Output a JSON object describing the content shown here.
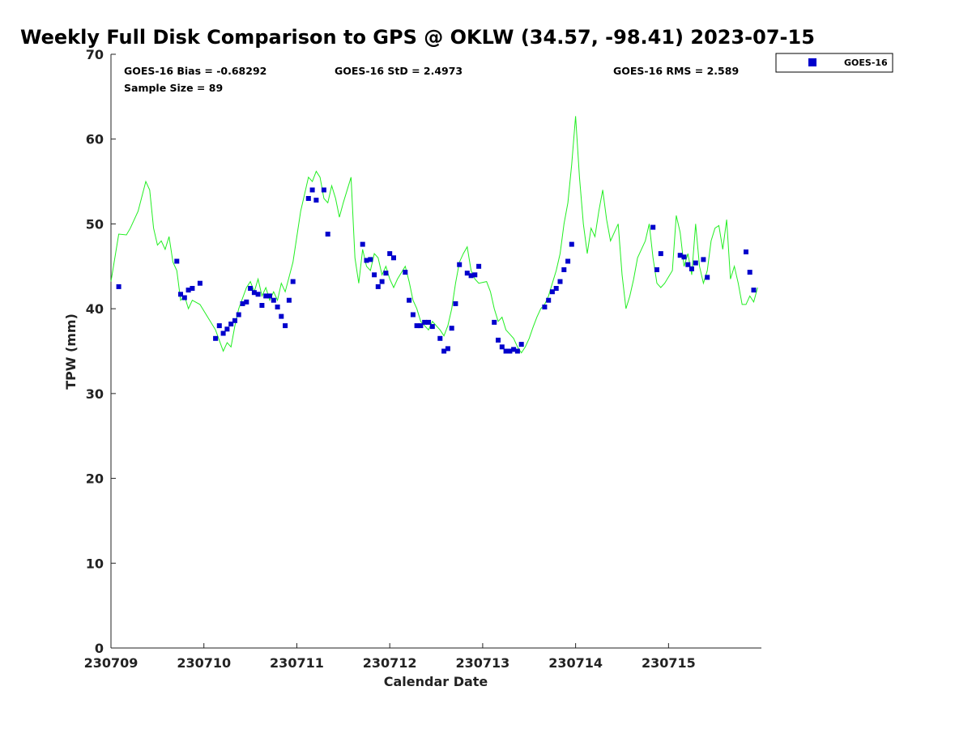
{
  "chart_data": {
    "type": "scatter",
    "title": "Weekly Full Disk Comparison to GPS @ OKLW (34.57, -98.41) 2023-07-15",
    "xlabel": "Calendar Date",
    "ylabel": "TPW (mm)",
    "xlim": [
      "2023-07-09T00:00",
      "2023-07-15T23:59"
    ],
    "ylim": [
      0,
      70
    ],
    "yticks": [
      0,
      10,
      20,
      30,
      40,
      50,
      60,
      70
    ],
    "xticks": [
      {
        "date": "2023-07-09T00:00",
        "label": "230709"
      },
      {
        "date": "2023-07-10T00:00",
        "label": "230710"
      },
      {
        "date": "2023-07-11T00:00",
        "label": "230711"
      },
      {
        "date": "2023-07-12T00:00",
        "label": "230712"
      },
      {
        "date": "2023-07-13T00:00",
        "label": "230713"
      },
      {
        "date": "2023-07-14T00:00",
        "label": "230714"
      },
      {
        "date": "2023-07-15T00:00",
        "label": "230715"
      }
    ],
    "grid": false,
    "legend_position": "outside-top-right",
    "stats": {
      "bias": "GOES-16 Bias = -0.68292",
      "std": "GOES-16 StD = 2.4973",
      "rms": "GOES-16 RMS = 2.589",
      "sample": "Sample Size = 89"
    },
    "series": [
      {
        "name": "GOES-16",
        "kind": "scatter",
        "marker": "square",
        "color": "#0000cc",
        "points": [
          [
            "2023-07-09T02:00",
            42.6
          ],
          [
            "2023-07-09T17:00",
            45.6
          ],
          [
            "2023-07-09T18:00",
            41.7
          ],
          [
            "2023-07-09T19:00",
            41.3
          ],
          [
            "2023-07-09T20:00",
            42.2
          ],
          [
            "2023-07-09T21:00",
            42.4
          ],
          [
            "2023-07-09T23:00",
            43.0
          ],
          [
            "2023-07-10T03:00",
            36.5
          ],
          [
            "2023-07-10T04:00",
            38.0
          ],
          [
            "2023-07-10T05:00",
            37.1
          ],
          [
            "2023-07-10T06:00",
            37.6
          ],
          [
            "2023-07-10T07:00",
            38.2
          ],
          [
            "2023-07-10T08:00",
            38.6
          ],
          [
            "2023-07-10T09:00",
            39.3
          ],
          [
            "2023-07-10T10:00",
            40.6
          ],
          [
            "2023-07-10T11:00",
            40.8
          ],
          [
            "2023-07-10T12:00",
            42.4
          ],
          [
            "2023-07-10T13:00",
            41.9
          ],
          [
            "2023-07-10T14:00",
            41.7
          ],
          [
            "2023-07-10T15:00",
            40.4
          ],
          [
            "2023-07-10T16:00",
            41.5
          ],
          [
            "2023-07-10T17:00",
            41.5
          ],
          [
            "2023-07-10T18:00",
            41.0
          ],
          [
            "2023-07-10T19:00",
            40.2
          ],
          [
            "2023-07-10T20:00",
            39.1
          ],
          [
            "2023-07-10T21:00",
            38.0
          ],
          [
            "2023-07-10T22:00",
            41.0
          ],
          [
            "2023-07-10T23:00",
            43.2
          ],
          [
            "2023-07-11T03:00",
            53.0
          ],
          [
            "2023-07-11T04:00",
            54.0
          ],
          [
            "2023-07-11T05:00",
            52.8
          ],
          [
            "2023-07-11T07:00",
            54.0
          ],
          [
            "2023-07-11T08:00",
            48.8
          ],
          [
            "2023-07-11T17:00",
            47.6
          ],
          [
            "2023-07-11T18:00",
            45.7
          ],
          [
            "2023-07-11T19:00",
            45.8
          ],
          [
            "2023-07-11T20:00",
            44.0
          ],
          [
            "2023-07-11T21:00",
            42.6
          ],
          [
            "2023-07-11T22:00",
            43.2
          ],
          [
            "2023-07-11T23:00",
            44.2
          ],
          [
            "2023-07-12T00:00",
            46.5
          ],
          [
            "2023-07-12T01:00",
            46.0
          ],
          [
            "2023-07-12T04:00",
            44.3
          ],
          [
            "2023-07-12T05:00",
            41.0
          ],
          [
            "2023-07-12T06:00",
            39.3
          ],
          [
            "2023-07-12T07:00",
            38.0
          ],
          [
            "2023-07-12T08:00",
            38.0
          ],
          [
            "2023-07-12T09:00",
            38.4
          ],
          [
            "2023-07-12T10:00",
            38.4
          ],
          [
            "2023-07-12T11:00",
            37.9
          ],
          [
            "2023-07-12T13:00",
            36.5
          ],
          [
            "2023-07-12T14:00",
            35.0
          ],
          [
            "2023-07-12T15:00",
            35.3
          ],
          [
            "2023-07-12T16:00",
            37.7
          ],
          [
            "2023-07-12T17:00",
            40.6
          ],
          [
            "2023-07-12T18:00",
            45.2
          ],
          [
            "2023-07-12T20:00",
            44.2
          ],
          [
            "2023-07-12T21:00",
            43.9
          ],
          [
            "2023-07-12T22:00",
            44.0
          ],
          [
            "2023-07-12T23:00",
            45.0
          ],
          [
            "2023-07-13T03:00",
            38.4
          ],
          [
            "2023-07-13T04:00",
            36.3
          ],
          [
            "2023-07-13T05:00",
            35.5
          ],
          [
            "2023-07-13T06:00",
            35.0
          ],
          [
            "2023-07-13T07:00",
            35.0
          ],
          [
            "2023-07-13T08:00",
            35.2
          ],
          [
            "2023-07-13T09:00",
            35.0
          ],
          [
            "2023-07-13T10:00",
            35.8
          ],
          [
            "2023-07-13T16:00",
            40.2
          ],
          [
            "2023-07-13T17:00",
            41.0
          ],
          [
            "2023-07-13T18:00",
            42.0
          ],
          [
            "2023-07-13T19:00",
            42.4
          ],
          [
            "2023-07-13T20:00",
            43.2
          ],
          [
            "2023-07-13T21:00",
            44.6
          ],
          [
            "2023-07-13T22:00",
            45.6
          ],
          [
            "2023-07-13T23:00",
            47.6
          ],
          [
            "2023-07-14T20:00",
            49.6
          ],
          [
            "2023-07-14T21:00",
            44.6
          ],
          [
            "2023-07-14T22:00",
            46.5
          ],
          [
            "2023-07-15T03:00",
            46.3
          ],
          [
            "2023-07-15T04:00",
            46.1
          ],
          [
            "2023-07-15T05:00",
            45.2
          ],
          [
            "2023-07-15T06:00",
            44.7
          ],
          [
            "2023-07-15T07:00",
            45.4
          ],
          [
            "2023-07-15T09:00",
            45.8
          ],
          [
            "2023-07-15T10:00",
            43.7
          ],
          [
            "2023-07-15T20:00",
            46.7
          ],
          [
            "2023-07-15T21:00",
            44.3
          ],
          [
            "2023-07-15T22:00",
            42.2
          ]
        ]
      },
      {
        "name": "",
        "kind": "line",
        "color": "#22ee22",
        "points": [
          [
            "2023-07-09T00:00",
            43.2
          ],
          [
            "2023-07-09T02:00",
            48.8
          ],
          [
            "2023-07-09T04:00",
            48.7
          ],
          [
            "2023-07-09T05:00",
            49.5
          ],
          [
            "2023-07-09T06:00",
            50.5
          ],
          [
            "2023-07-09T07:00",
            51.5
          ],
          [
            "2023-07-09T09:00",
            55.0
          ],
          [
            "2023-07-09T10:00",
            54.0
          ],
          [
            "2023-07-09T11:00",
            49.5
          ],
          [
            "2023-07-09T12:00",
            47.5
          ],
          [
            "2023-07-09T13:00",
            48.0
          ],
          [
            "2023-07-09T14:00",
            47.0
          ],
          [
            "2023-07-09T15:00",
            48.5
          ],
          [
            "2023-07-09T16:00",
            45.5
          ],
          [
            "2023-07-09T17:00",
            44.5
          ],
          [
            "2023-07-09T18:00",
            41.0
          ],
          [
            "2023-07-09T19:00",
            41.5
          ],
          [
            "2023-07-09T20:00",
            40.0
          ],
          [
            "2023-07-09T21:00",
            41.0
          ],
          [
            "2023-07-09T23:00",
            40.5
          ],
          [
            "2023-07-10T01:00",
            39.0
          ],
          [
            "2023-07-10T03:00",
            37.5
          ],
          [
            "2023-07-10T05:00",
            35.0
          ],
          [
            "2023-07-10T06:00",
            36.0
          ],
          [
            "2023-07-10T07:00",
            35.5
          ],
          [
            "2023-07-10T08:00",
            38.0
          ],
          [
            "2023-07-10T09:00",
            40.0
          ],
          [
            "2023-07-10T11:00",
            42.5
          ],
          [
            "2023-07-10T12:00",
            43.2
          ],
          [
            "2023-07-10T13:00",
            42.0
          ],
          [
            "2023-07-10T14:00",
            43.5
          ],
          [
            "2023-07-10T15:00",
            41.5
          ],
          [
            "2023-07-10T16:00",
            42.5
          ],
          [
            "2023-07-10T17:00",
            41.0
          ],
          [
            "2023-07-10T18:00",
            42.0
          ],
          [
            "2023-07-10T19:00",
            41.0
          ],
          [
            "2023-07-10T20:00",
            43.0
          ],
          [
            "2023-07-10T21:00",
            42.0
          ],
          [
            "2023-07-10T23:00",
            45.5
          ],
          [
            "2023-07-11T01:00",
            51.5
          ],
          [
            "2023-07-11T02:00",
            53.5
          ],
          [
            "2023-07-11T03:00",
            55.5
          ],
          [
            "2023-07-11T04:00",
            55.0
          ],
          [
            "2023-07-11T05:00",
            56.2
          ],
          [
            "2023-07-11T06:00",
            55.5
          ],
          [
            "2023-07-11T07:00",
            53.0
          ],
          [
            "2023-07-11T08:00",
            52.5
          ],
          [
            "2023-07-11T09:00",
            54.5
          ],
          [
            "2023-07-11T10:00",
            53.0
          ],
          [
            "2023-07-11T11:00",
            50.8
          ],
          [
            "2023-07-11T12:00",
            52.5
          ],
          [
            "2023-07-11T14:00",
            55.5
          ],
          [
            "2023-07-11T15:00",
            46.0
          ],
          [
            "2023-07-11T16:00",
            43.0
          ],
          [
            "2023-07-11T17:00",
            47.0
          ],
          [
            "2023-07-11T18:00",
            45.0
          ],
          [
            "2023-07-11T19:00",
            44.5
          ],
          [
            "2023-07-11T20:00",
            46.5
          ],
          [
            "2023-07-11T21:00",
            46.0
          ],
          [
            "2023-07-11T22:00",
            44.0
          ],
          [
            "2023-07-11T23:00",
            45.0
          ],
          [
            "2023-07-12T00:00",
            43.5
          ],
          [
            "2023-07-12T01:00",
            42.5
          ],
          [
            "2023-07-12T02:00",
            43.5
          ],
          [
            "2023-07-12T04:00",
            45.0
          ],
          [
            "2023-07-12T05:00",
            43.2
          ],
          [
            "2023-07-12T06:00",
            41.0
          ],
          [
            "2023-07-12T07:00",
            40.0
          ],
          [
            "2023-07-12T08:00",
            38.5
          ],
          [
            "2023-07-12T09:00",
            38.0
          ],
          [
            "2023-07-12T10:00",
            37.5
          ],
          [
            "2023-07-12T11:00",
            38.5
          ],
          [
            "2023-07-12T13:00",
            37.5
          ],
          [
            "2023-07-12T14:00",
            36.8
          ],
          [
            "2023-07-12T15:00",
            38.0
          ],
          [
            "2023-07-12T16:00",
            40.0
          ],
          [
            "2023-07-12T17:00",
            43.0
          ],
          [
            "2023-07-12T18:00",
            45.5
          ],
          [
            "2023-07-12T19:00",
            46.5
          ],
          [
            "2023-07-12T20:00",
            47.3
          ],
          [
            "2023-07-12T21:00",
            44.5
          ],
          [
            "2023-07-12T22:00",
            43.5
          ],
          [
            "2023-07-12T23:00",
            43.0
          ],
          [
            "2023-07-13T01:00",
            43.2
          ],
          [
            "2023-07-13T02:00",
            42.0
          ],
          [
            "2023-07-13T03:00",
            40.0
          ],
          [
            "2023-07-13T04:00",
            38.5
          ],
          [
            "2023-07-13T05:00",
            39.0
          ],
          [
            "2023-07-13T06:00",
            37.5
          ],
          [
            "2023-07-13T07:00",
            37.0
          ],
          [
            "2023-07-13T08:00",
            36.5
          ],
          [
            "2023-07-13T09:00",
            35.5
          ],
          [
            "2023-07-13T10:00",
            34.8
          ],
          [
            "2023-07-13T11:00",
            35.5
          ],
          [
            "2023-07-13T12:00",
            36.5
          ],
          [
            "2023-07-13T13:00",
            37.8
          ],
          [
            "2023-07-13T14:00",
            39.0
          ],
          [
            "2023-07-13T15:00",
            40.0
          ],
          [
            "2023-07-13T16:00",
            40.5
          ],
          [
            "2023-07-13T17:00",
            41.5
          ],
          [
            "2023-07-13T18:00",
            43.0
          ],
          [
            "2023-07-13T19:00",
            44.5
          ],
          [
            "2023-07-13T20:00",
            46.5
          ],
          [
            "2023-07-13T21:00",
            50.0
          ],
          [
            "2023-07-13T22:00",
            52.5
          ],
          [
            "2023-07-13T23:00",
            57.0
          ],
          [
            "2023-07-14T00:00",
            62.7
          ],
          [
            "2023-07-14T01:00",
            55.5
          ],
          [
            "2023-07-14T02:00",
            50.0
          ],
          [
            "2023-07-14T03:00",
            46.5
          ],
          [
            "2023-07-14T04:00",
            49.5
          ],
          [
            "2023-07-14T05:00",
            48.5
          ],
          [
            "2023-07-14T06:00",
            51.5
          ],
          [
            "2023-07-14T07:00",
            54.0
          ],
          [
            "2023-07-14T08:00",
            50.5
          ],
          [
            "2023-07-14T09:00",
            48.0
          ],
          [
            "2023-07-14T11:00",
            50.0
          ],
          [
            "2023-07-14T12:00",
            44.0
          ],
          [
            "2023-07-14T13:00",
            40.0
          ],
          [
            "2023-07-14T14:00",
            41.5
          ],
          [
            "2023-07-14T15:00",
            43.5
          ],
          [
            "2023-07-14T16:00",
            46.0
          ],
          [
            "2023-07-14T17:00",
            47.0
          ],
          [
            "2023-07-14T18:00",
            48.0
          ],
          [
            "2023-07-14T19:00",
            50.0
          ],
          [
            "2023-07-14T20:00",
            46.0
          ],
          [
            "2023-07-14T21:00",
            43.0
          ],
          [
            "2023-07-14T22:00",
            42.5
          ],
          [
            "2023-07-14T23:00",
            43.0
          ],
          [
            "2023-07-15T01:00",
            44.5
          ],
          [
            "2023-07-15T02:00",
            51.0
          ],
          [
            "2023-07-15T03:00",
            49.0
          ],
          [
            "2023-07-15T04:00",
            45.0
          ],
          [
            "2023-07-15T05:00",
            46.5
          ],
          [
            "2023-07-15T06:00",
            44.0
          ],
          [
            "2023-07-15T07:00",
            50.0
          ],
          [
            "2023-07-15T08:00",
            45.0
          ],
          [
            "2023-07-15T09:00",
            43.0
          ],
          [
            "2023-07-15T10:00",
            44.5
          ],
          [
            "2023-07-15T11:00",
            48.0
          ],
          [
            "2023-07-15T12:00",
            49.5
          ],
          [
            "2023-07-15T13:00",
            49.8
          ],
          [
            "2023-07-15T14:00",
            47.0
          ],
          [
            "2023-07-15T15:00",
            50.5
          ],
          [
            "2023-07-15T16:00",
            43.5
          ],
          [
            "2023-07-15T17:00",
            45.0
          ],
          [
            "2023-07-15T18:00",
            43.0
          ],
          [
            "2023-07-15T19:00",
            40.5
          ],
          [
            "2023-07-15T20:00",
            40.5
          ],
          [
            "2023-07-15T21:00",
            41.5
          ],
          [
            "2023-07-15T22:00",
            40.8
          ],
          [
            "2023-07-15T23:00",
            42.5
          ]
        ]
      }
    ]
  }
}
